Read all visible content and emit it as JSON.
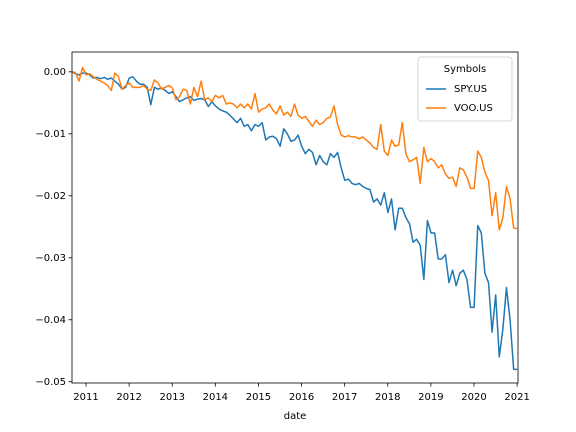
{
  "chart_data": {
    "type": "line",
    "x_label": "date",
    "legend_title": "Symbols",
    "legend_position": "upper right",
    "xlim": [
      2010.675,
      2021.021
    ],
    "ylim": [
      -0.0502,
      0.0032
    ],
    "xticks": [
      2011,
      2012,
      2013,
      2014,
      2015,
      2016,
      2017,
      2018,
      2019,
      2020,
      2021
    ],
    "yticks": [
      {
        "value": 0,
        "label": "0.00"
      },
      {
        "value": -0.01,
        "label": "−0.01"
      },
      {
        "value": -0.02,
        "label": "−0.02"
      },
      {
        "value": -0.03,
        "label": "−0.03"
      },
      {
        "value": -0.04,
        "label": "−0.04"
      },
      {
        "value": -0.05,
        "label": "−0.05"
      }
    ],
    "x": [
      2010.67,
      2010.753,
      2010.837,
      2010.92,
      2011.003,
      2011.087,
      2011.17,
      2011.253,
      2011.337,
      2011.42,
      2011.503,
      2011.587,
      2011.67,
      2011.753,
      2011.837,
      2011.92,
      2012.003,
      2012.087,
      2012.17,
      2012.253,
      2012.337,
      2012.42,
      2012.503,
      2012.587,
      2012.67,
      2012.753,
      2012.837,
      2012.92,
      2013.003,
      2013.087,
      2013.17,
      2013.253,
      2013.337,
      2013.42,
      2013.503,
      2013.587,
      2013.67,
      2013.753,
      2013.837,
      2013.92,
      2014.003,
      2014.087,
      2014.17,
      2014.253,
      2014.337,
      2014.42,
      2014.503,
      2014.587,
      2014.67,
      2014.753,
      2014.837,
      2014.92,
      2015.003,
      2015.087,
      2015.17,
      2015.253,
      2015.337,
      2015.42,
      2015.503,
      2015.587,
      2015.67,
      2015.753,
      2015.837,
      2015.92,
      2016.003,
      2016.087,
      2016.17,
      2016.253,
      2016.337,
      2016.42,
      2016.503,
      2016.587,
      2016.67,
      2016.753,
      2016.837,
      2016.92,
      2017.003,
      2017.087,
      2017.17,
      2017.253,
      2017.337,
      2017.42,
      2017.503,
      2017.587,
      2017.67,
      2017.753,
      2017.837,
      2017.92,
      2018.003,
      2018.087,
      2018.17,
      2018.253,
      2018.337,
      2018.42,
      2018.503,
      2018.587,
      2018.67,
      2018.753,
      2018.837,
      2018.92,
      2019.003,
      2019.087,
      2019.17,
      2019.253,
      2019.337,
      2019.42,
      2019.503,
      2019.587,
      2019.67,
      2019.753,
      2019.837,
      2019.92,
      2020.003,
      2020.087,
      2020.17,
      2020.253,
      2020.337,
      2020.42,
      2020.503,
      2020.587,
      2020.67,
      2020.753,
      2020.837,
      2020.92,
      2021.003
    ],
    "series": [
      {
        "name": "SPY.US",
        "color": "#1f77b4",
        "values": [
          0,
          -0.0003,
          -0.0005,
          -0.0002,
          -0.0002,
          -0.0005,
          -0.001,
          -0.0009,
          -0.0011,
          -0.0009,
          -0.0012,
          -0.001,
          -0.0015,
          -0.002,
          -0.0028,
          -0.0025,
          -0.001,
          -0.0008,
          -0.0015,
          -0.002,
          -0.002,
          -0.0025,
          -0.0053,
          -0.0025,
          -0.0028,
          -0.0026,
          -0.003,
          -0.0035,
          -0.0032,
          -0.004,
          -0.0048,
          -0.0045,
          -0.0042,
          -0.004,
          -0.0046,
          -0.0044,
          -0.0043,
          -0.0045,
          -0.0056,
          -0.0048,
          -0.0055,
          -0.006,
          -0.0063,
          -0.0065,
          -0.007,
          -0.0076,
          -0.0082,
          -0.0075,
          -0.0088,
          -0.0085,
          -0.0095,
          -0.0085,
          -0.0088,
          -0.0082,
          -0.011,
          -0.0105,
          -0.0104,
          -0.0108,
          -0.012,
          -0.0092,
          -0.01,
          -0.0112,
          -0.011,
          -0.0102,
          -0.012,
          -0.0132,
          -0.0125,
          -0.013,
          -0.015,
          -0.0135,
          -0.0145,
          -0.015,
          -0.0132,
          -0.0138,
          -0.013,
          -0.0155,
          -0.0175,
          -0.0173,
          -0.018,
          -0.0182,
          -0.018,
          -0.0185,
          -0.0188,
          -0.019,
          -0.021,
          -0.0205,
          -0.0215,
          -0.0195,
          -0.0227,
          -0.0205,
          -0.0255,
          -0.022,
          -0.022,
          -0.0235,
          -0.0245,
          -0.0275,
          -0.027,
          -0.028,
          -0.0335,
          -0.024,
          -0.026,
          -0.026,
          -0.0302,
          -0.0302,
          -0.0295,
          -0.034,
          -0.032,
          -0.0345,
          -0.0325,
          -0.032,
          -0.0335,
          -0.038,
          -0.038,
          -0.0248,
          -0.026,
          -0.0325,
          -0.034,
          -0.042,
          -0.036,
          -0.046,
          -0.0415,
          -0.0348,
          -0.04,
          -0.048,
          -0.048
        ]
      },
      {
        "name": "VOO.US",
        "color": "#ff7f0e",
        "values": [
          0,
          -0.0001,
          -0.0015,
          0.0007,
          -0.0005,
          -0.0003,
          -0.0008,
          -0.0012,
          -0.0015,
          -0.0018,
          -0.0022,
          -0.003,
          -0.0002,
          -0.0008,
          -0.0028,
          -0.0022,
          -0.0018,
          -0.0025,
          -0.0025,
          -0.0025,
          -0.0022,
          -0.0028,
          -0.003,
          -0.0013,
          -0.0018,
          -0.0028,
          -0.0025,
          -0.0022,
          -0.0026,
          -0.0045,
          -0.004,
          -0.0028,
          -0.003,
          -0.0052,
          -0.0025,
          -0.004,
          -0.0015,
          -0.0045,
          -0.0042,
          -0.0048,
          -0.0038,
          -0.0042,
          -0.0038,
          -0.0052,
          -0.005,
          -0.0052,
          -0.0058,
          -0.0052,
          -0.0058,
          -0.0052,
          -0.006,
          -0.0035,
          -0.0065,
          -0.006,
          -0.0058,
          -0.0052,
          -0.0062,
          -0.0068,
          -0.0055,
          -0.007,
          -0.0065,
          -0.0072,
          -0.0052,
          -0.007,
          -0.0075,
          -0.0072,
          -0.008,
          -0.0088,
          -0.0078,
          -0.0085,
          -0.0082,
          -0.0075,
          -0.0073,
          -0.0055,
          -0.0085,
          -0.0102,
          -0.0105,
          -0.0103,
          -0.0105,
          -0.0105,
          -0.0108,
          -0.0105,
          -0.011,
          -0.0115,
          -0.0122,
          -0.0125,
          -0.0085,
          -0.0128,
          -0.0135,
          -0.011,
          -0.012,
          -0.0118,
          -0.0082,
          -0.0132,
          -0.0145,
          -0.0142,
          -0.0138,
          -0.018,
          -0.0122,
          -0.0145,
          -0.014,
          -0.0145,
          -0.0155,
          -0.015,
          -0.0165,
          -0.0172,
          -0.017,
          -0.0185,
          -0.0155,
          -0.0158,
          -0.017,
          -0.0188,
          -0.0188,
          -0.0128,
          -0.0138,
          -0.0162,
          -0.0175,
          -0.0232,
          -0.0195,
          -0.0255,
          -0.0235,
          -0.0185,
          -0.0205,
          -0.0252,
          -0.0253
        ]
      }
    ]
  }
}
